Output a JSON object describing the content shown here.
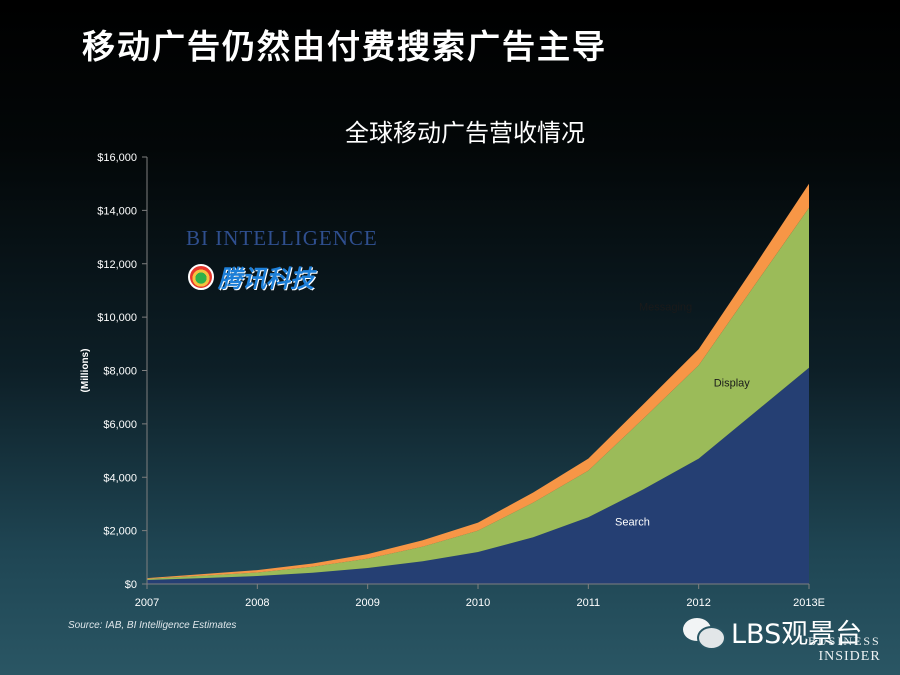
{
  "slide": {
    "title": "移动广告仍然由付费搜索广告主导",
    "source": "Source: IAB, BI Intelligence Estimates"
  },
  "brands": {
    "bi_intelligence": "BI INTELLIGENCE",
    "tencent_tech": "腾讯科技",
    "watermark": "LBS观景台",
    "business_insider_line1": "BUSINESS",
    "business_insider_line2": "INSIDER"
  },
  "colors": {
    "search": "#253f73",
    "display": "#9bbb59",
    "messaging": "#f79646",
    "axis": "#7f7f7f",
    "text": "#ffffff"
  },
  "chart_data": {
    "type": "area",
    "stacked": true,
    "title": "全球移动广告营收情况",
    "ylabel": "(Millions)",
    "xlabel": "",
    "x": [
      2007,
      2007.5,
      2008,
      2008.5,
      2009,
      2009.5,
      2010,
      2010.5,
      2011,
      2011.5,
      2012,
      2012.5,
      2013
    ],
    "x_ticks": [
      2007,
      2008,
      2009,
      2010,
      2011,
      2012,
      2013
    ],
    "x_tick_labels": [
      "2007",
      "2008",
      "2009",
      "2010",
      "2011",
      "2012",
      "2013E"
    ],
    "ylim": [
      0,
      16000
    ],
    "y_ticks": [
      0,
      2000,
      4000,
      6000,
      8000,
      10000,
      12000,
      14000,
      16000
    ],
    "y_tick_labels": [
      "$0",
      "$2,000",
      "$4,000",
      "$6,000",
      "$8,000",
      "$10,000",
      "$12,000",
      "$14,000",
      "$16,000"
    ],
    "series": [
      {
        "name": "Search",
        "label": "Search",
        "label_at": [
          2011.4,
          2200
        ],
        "values": [
          150,
          220,
          300,
          420,
          600,
          850,
          1200,
          1750,
          2500,
          3550,
          4700,
          6400,
          8100
        ]
      },
      {
        "name": "Display",
        "label": "Display",
        "label_at": [
          2012.3,
          7400
        ],
        "values": [
          40,
          90,
          130,
          230,
          350,
          550,
          800,
          1300,
          1750,
          2650,
          3500,
          4750,
          6000
        ]
      },
      {
        "name": "Messaging",
        "label": "Messaging",
        "label_at": [
          2011.7,
          10250
        ],
        "values": [
          30,
          60,
          90,
          120,
          170,
          240,
          300,
          380,
          450,
          540,
          600,
          720,
          900
        ]
      }
    ]
  }
}
